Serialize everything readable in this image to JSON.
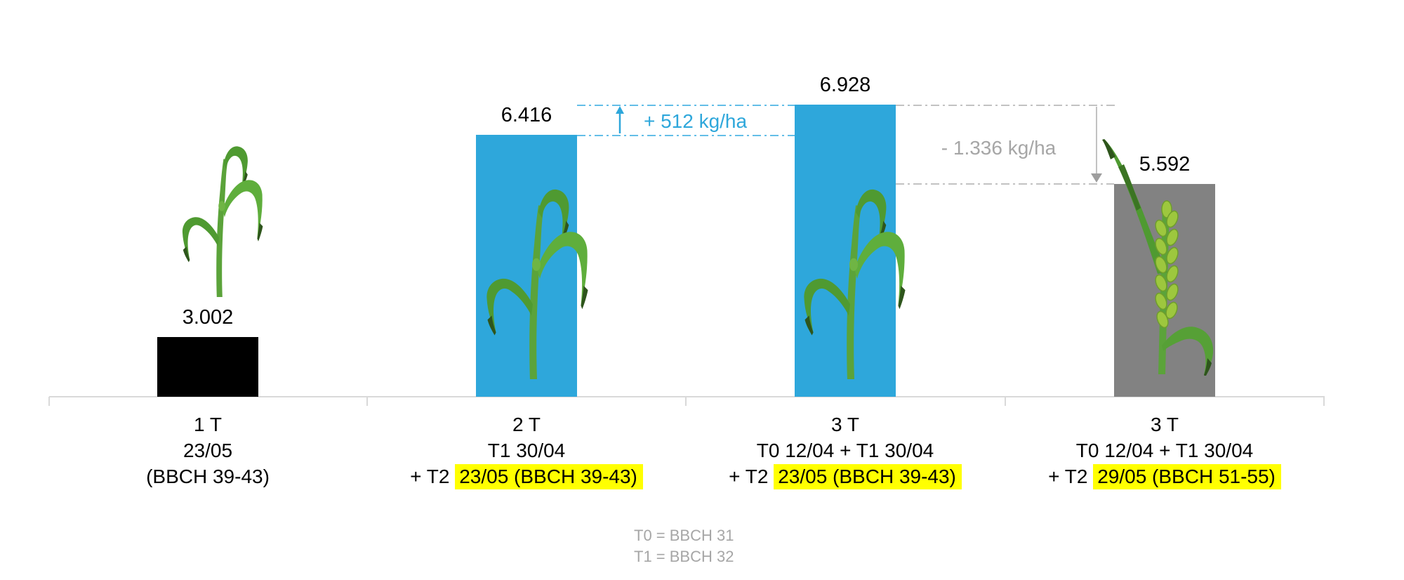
{
  "chart_data": {
    "type": "bar",
    "title": "",
    "unit": "kg/ha",
    "values": [
      3002,
      6416,
      6928,
      5592
    ],
    "value_labels": [
      "3.002",
      "6.416",
      "6.928",
      "5.592"
    ],
    "bar_colors": [
      "#000000",
      "#2ea7db",
      "#2ea7db",
      "#828282"
    ],
    "ylim_baseline_value": 2000,
    "grid": "off",
    "legend": "none",
    "categories": [
      {
        "line1": "1 T",
        "line2": "23/05",
        "line3_prefix": "(BBCH 39-43)",
        "line3_highlight": ""
      },
      {
        "line1": "2 T",
        "line2": "T1 30/04",
        "line3_prefix": "+ T2 ",
        "line3_highlight": "23/05 (BBCH 39-43)"
      },
      {
        "line1": "3 T",
        "line2": "T0 12/04 + T1 30/04",
        "line3_prefix": "+ T2 ",
        "line3_highlight": "23/05 (BBCH 39-43)"
      },
      {
        "line1": "3 T",
        "line2": "T0 12/04 + T1 30/04",
        "line3_prefix": "+ T2 ",
        "line3_highlight": "29/05 (BBCH 51-55)"
      }
    ],
    "annotations": [
      {
        "text": "+ 512 kg/ha",
        "delta": 512,
        "from_bar": 1,
        "to_bar": 2,
        "direction": "up",
        "color": "#2ea7db"
      },
      {
        "text": "- 1.336 kg/ha",
        "delta": -1336,
        "from_bar": 2,
        "to_bar": 3,
        "direction": "down",
        "color": "#a6a6a6"
      }
    ],
    "footnotes": [
      "T0 = BBCH 31",
      "T1 = BBCH 32"
    ],
    "highlight_color": "#ffff00",
    "axis_color": "#d9d9d9",
    "plant_icons": [
      "wheat-vegetative-small",
      "wheat-vegetative",
      "wheat-vegetative",
      "wheat-heading-ear"
    ]
  }
}
